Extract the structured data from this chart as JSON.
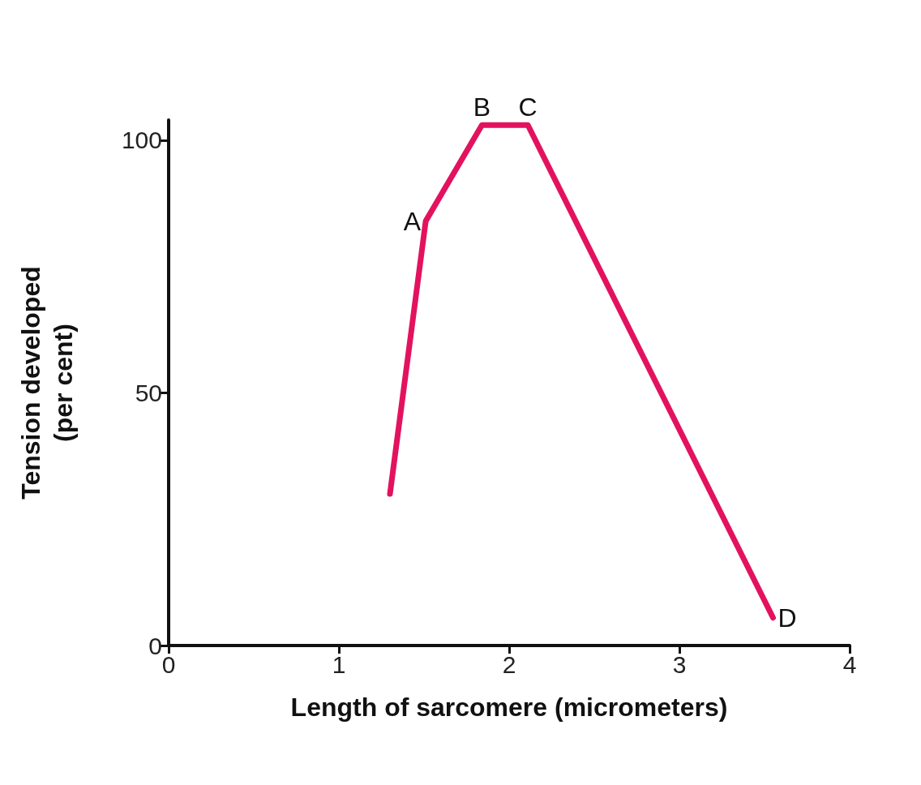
{
  "chart_data": {
    "type": "line",
    "xlabel": "Length of sarcomere (micrometers)",
    "ylabel": "Tension developed\n(per cent)",
    "x": [
      1.3,
      1.51,
      1.84,
      2.11,
      3.55
    ],
    "series": [
      {
        "color": "#e3125f",
        "values": [
          30,
          84,
          103,
          103,
          5.5
        ]
      }
    ],
    "xlim": [
      0,
      4
    ],
    "xticks": [
      0,
      1,
      2,
      3,
      4
    ],
    "ylim": [
      0,
      104
    ],
    "yticks": [
      0,
      50,
      100
    ],
    "grid": false,
    "marker": "none",
    "line_style": "solid",
    "annotations": [
      {
        "text": "A",
        "x": 1.51,
        "y": 84
      },
      {
        "text": "B",
        "x": 1.84,
        "y": 103
      },
      {
        "text": "C",
        "x": 2.11,
        "y": 103
      },
      {
        "text": "D",
        "x": 3.55,
        "y": 5.5
      }
    ]
  }
}
